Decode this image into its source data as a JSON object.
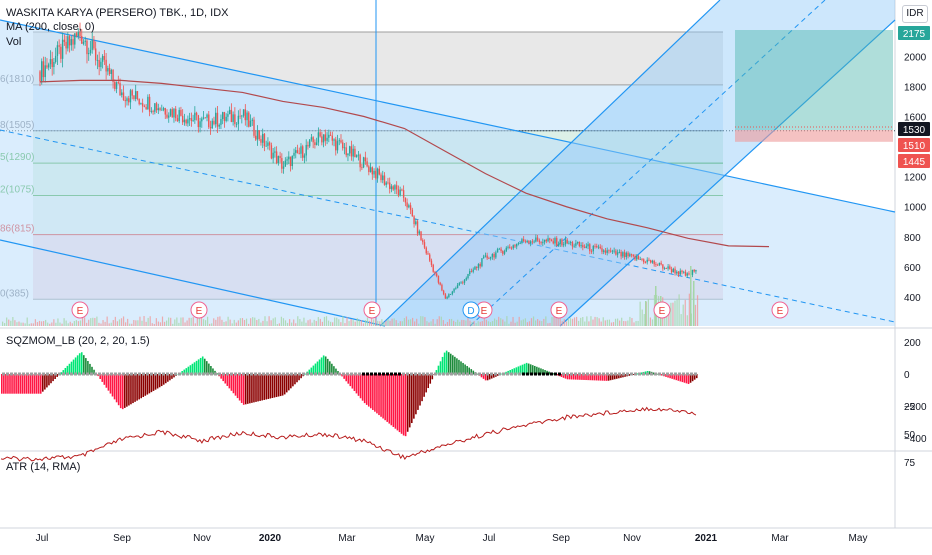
{
  "header": {
    "symbol_title": "WASKITA KARYA (PERSERO) TBK., 1D, IDX",
    "ma_label": "MA (200, close, 0)",
    "vol_label": "Vol",
    "currency_button": "IDR"
  },
  "colors": {
    "up": "#26a69a",
    "down": "#ef5350",
    "ma": "#b2494d",
    "channel_line": "#2196f3",
    "channel_fill": "#90caf9",
    "fib_grey": "#b2b5be",
    "fib_green": "#4caf50",
    "fib_red": "#e53935",
    "fib_pink": "#f8bbd0",
    "target_fill": "#4db6ac",
    "stop_fill": "#ef9a9a",
    "atr_line": "#b71c1c",
    "sqz_bright_green": "#00e676",
    "sqz_dark_green": "#1b8a3a",
    "sqz_bright_red": "#ff1744",
    "sqz_dark_red": "#8b0000"
  },
  "x_axis": {
    "ticks": [
      "Jul",
      "Sep",
      "Nov",
      "2020",
      "Mar",
      "May",
      "Jul",
      "Sep",
      "Nov",
      "2021",
      "Mar",
      "May"
    ]
  },
  "price_pane": {
    "price_ticks": [
      "2000",
      "1800",
      "1600",
      "1400",
      "1200",
      "1000",
      "800",
      "600",
      "400"
    ],
    "badges": [
      {
        "text": "2175",
        "color": "#26a69a"
      },
      {
        "text": "1530",
        "color": "#131722"
      },
      {
        "text": "1510",
        "color": "#ef5350"
      },
      {
        "text": "1445",
        "color": "#ef5350"
      }
    ],
    "fib_labels": [
      {
        "text": "6(1810)",
        "color": "#787b86"
      },
      {
        "text": "8(1505)",
        "color": "#787b86"
      },
      {
        "text": "5(1290)",
        "color": "#4caf50"
      },
      {
        "text": "2(1075)",
        "color": "#4caf50"
      },
      {
        "text": "86(815)",
        "color": "#e53935"
      },
      {
        "text": "0(385)",
        "color": "#787b86"
      }
    ],
    "event_marker": "E",
    "dividend_marker": "D"
  },
  "chart_data": [
    {
      "type": "line",
      "title": "WASKITA KARYA (PERSERO) TBK., 1D, IDX",
      "x": [
        "2019-06",
        "2019-07",
        "2019-08",
        "2019-09",
        "2019-10",
        "2019-11",
        "2019-12",
        "2020-01",
        "2020-02",
        "2020-03",
        "2020-04",
        "2020-05",
        "2020-06",
        "2020-07",
        "2020-08",
        "2020-09",
        "2020-10",
        "2020-11",
        "2020-12"
      ],
      "series": [
        {
          "name": "Close",
          "values": [
            1900,
            2150,
            1760,
            1660,
            1560,
            1610,
            1270,
            1480,
            1290,
            1060,
            390,
            660,
            780,
            760,
            700,
            640,
            540,
            760,
            1510
          ]
        },
        {
          "name": "MA (200, close, 0)",
          "values": [
            1830,
            1840,
            1840,
            1820,
            1790,
            1760,
            1700,
            1660,
            1600,
            1520,
            1370,
            1220,
            1090,
            1000,
            920,
            860,
            790,
            740,
            735
          ]
        }
      ],
      "fib_levels": [
        {
          "ratio_label": "6",
          "price": 1810
        },
        {
          "ratio_label": "8",
          "price": 1505
        },
        {
          "ratio_label": "5",
          "price": 1290
        },
        {
          "ratio_label": "2",
          "price": 1075
        },
        {
          "ratio_label": "86",
          "price": 815
        },
        {
          "ratio_label": "0",
          "price": 385
        }
      ],
      "position_tool": {
        "target": 2175,
        "entry": 1510,
        "stop": 1445,
        "last": 1530
      },
      "ylim": [
        260,
        2260
      ]
    },
    {
      "type": "bar",
      "title": "SQZMOM_LB (20, 2, 20, 1.5)",
      "y_ticks": [
        "200",
        "0",
        "−200",
        "−400"
      ],
      "ylim": [
        -430,
        240
      ],
      "note_keys": [
        "x",
        "values"
      ],
      "x": [
        "2019-06",
        "2019-07",
        "2019-08",
        "2019-09",
        "2019-10",
        "2019-11",
        "2019-12",
        "2020-01",
        "2020-02",
        "2020-03",
        "2020-04",
        "2020-05",
        "2020-06",
        "2020-07",
        "2020-08",
        "2020-09",
        "2020-10",
        "2020-11",
        "2020-12"
      ],
      "values": [
        -120,
        140,
        -220,
        -70,
        110,
        -190,
        -130,
        120,
        -180,
        -390,
        150,
        -40,
        70,
        -30,
        -40,
        20,
        -60,
        130,
        190
      ]
    },
    {
      "type": "line",
      "title": "ATR (14, RMA)",
      "y_ticks": [
        "75",
        "50",
        "25"
      ],
      "ylim": [
        20,
        82
      ],
      "x": [
        "2019-06",
        "2019-07",
        "2019-08",
        "2019-09",
        "2019-10",
        "2019-11",
        "2019-12",
        "2020-01",
        "2020-02",
        "2020-03",
        "2020-04",
        "2020-05",
        "2020-06",
        "2020-07",
        "2020-08",
        "2020-09",
        "2020-10",
        "2020-11",
        "2020-12"
      ],
      "values": [
        72,
        70,
        55,
        48,
        56,
        49,
        53,
        50,
        56,
        71,
        60,
        50,
        42,
        35,
        31,
        27,
        30,
        48,
        78
      ]
    }
  ]
}
